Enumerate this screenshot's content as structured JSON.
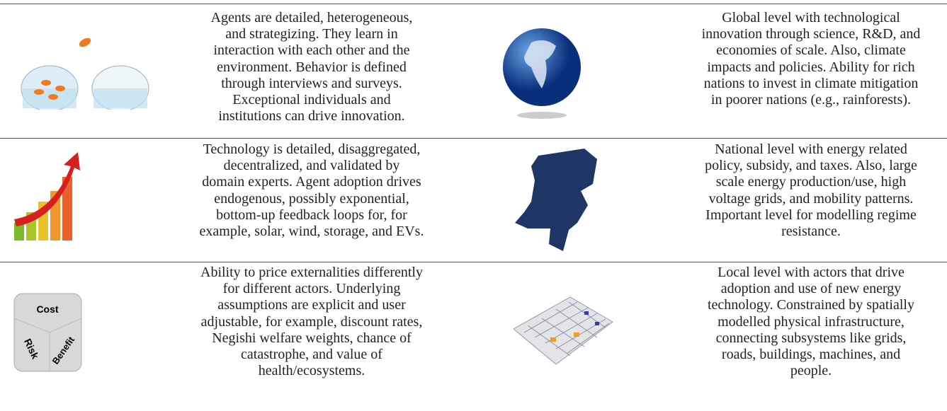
{
  "table": {
    "rows": [
      {
        "left": [
          "Agents are detailed, heterogeneous,",
          "and strategizing. They learn in",
          "interaction with each other and the",
          "environment. Behavior is defined",
          "through interviews and surveys.",
          "Exceptional individuals and",
          "institutions can drive innovation."
        ],
        "right": [
          "Global level with technological",
          "innovation through science, R&D, and",
          "economies of scale. Also, climate",
          "impacts and policies. Ability for rich",
          "nations to invest in climate mitigation",
          "in poorer nations (e.g., rainforests)."
        ]
      },
      {
        "left": [
          "Technology is detailed, disaggregated,",
          "decentralized, and validated by",
          "domain experts. Agent adoption drives",
          "endogenous, possibly exponential,",
          "bottom-up feedback loops for, for",
          "example, solar, wind, storage, and EVs."
        ],
        "right": [
          "National level with energy related",
          "policy, subsidy, and taxes. Also, large",
          "scale energy production/use, high",
          "voltage grids, and mobility patterns.",
          "Important level for modelling regime",
          "resistance."
        ]
      },
      {
        "left": [
          "Ability to price externalities differently",
          "for different actors. Underlying",
          "assumptions are explicit and user",
          "adjustable, for example, discount rates,",
          "Negishi welfare weights, chance of",
          "catastrophe, and value of",
          "health/ecosystems."
        ],
        "right": [
          "Local level with actors that drive",
          "adoption and use of new energy",
          "technology. Constrained by spatially",
          "modelled physical infrastructure,",
          "connecting subsystems like grids,",
          "roads, buildings, machines, and",
          "people."
        ]
      }
    ],
    "dice_labels": [
      "Cost",
      "Risk",
      "Benefit"
    ]
  }
}
